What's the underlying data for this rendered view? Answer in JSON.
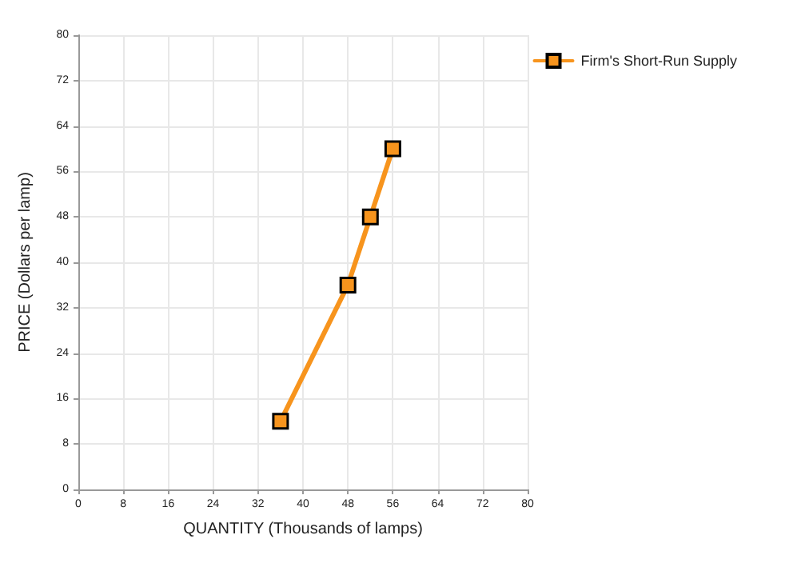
{
  "chart_data": {
    "type": "line",
    "xlabel": "QUANTITY (Thousands of lamps)",
    "ylabel": "PRICE (Dollars per lamp)",
    "series": [
      {
        "name": "Firm's Short-Run Supply",
        "color": "#f7941d",
        "x": [
          36,
          48,
          52,
          56
        ],
        "values": [
          12,
          36,
          48,
          60
        ]
      }
    ],
    "xlim": [
      0,
      80
    ],
    "xticks": [
      0,
      8,
      16,
      24,
      32,
      40,
      48,
      56,
      64,
      72,
      80
    ],
    "ylim": [
      0,
      80
    ],
    "yticks": [
      0,
      8,
      16,
      24,
      32,
      40,
      48,
      56,
      64,
      72,
      80
    ],
    "grid": true,
    "legend": "top right",
    "marker": "square",
    "line_style": "solid"
  }
}
